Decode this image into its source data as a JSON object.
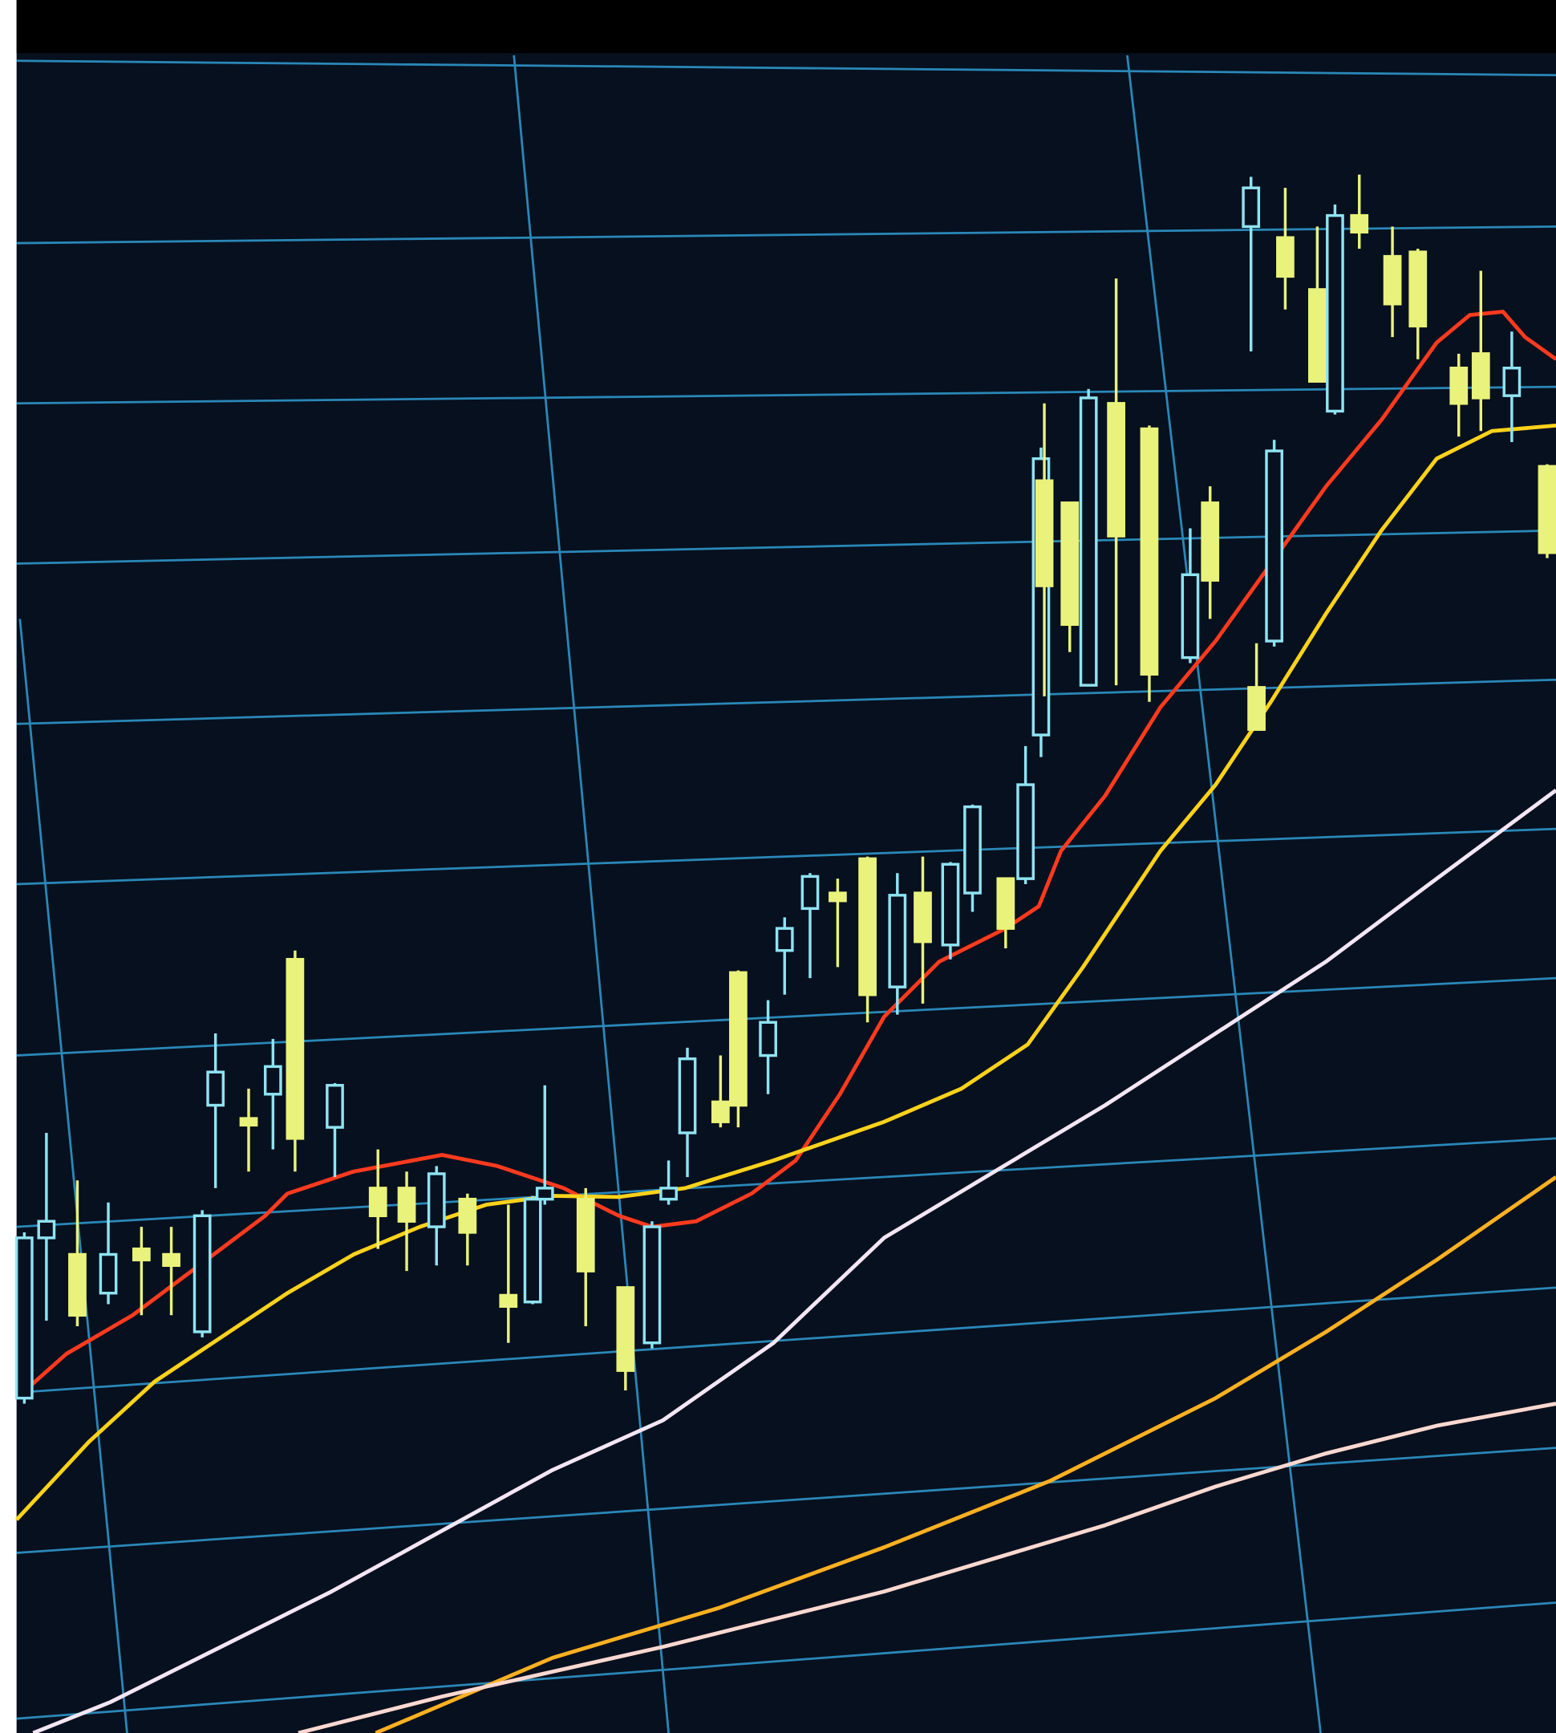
{
  "chart_data": {
    "type": "candlestick",
    "xlim": [
      0,
      1408
    ],
    "ylim": [
      0,
      1568
    ],
    "up_color": "#8fe3f2",
    "down_color": "#e9f27a",
    "x": [
      22,
      42,
      70,
      98,
      128,
      155,
      183,
      195,
      225,
      247,
      267,
      303,
      342,
      368,
      395,
      423,
      460,
      482,
      493,
      530,
      566,
      590,
      605,
      622,
      652,
      668,
      695,
      710,
      733,
      758,
      785,
      812,
      835,
      860,
      880,
      910,
      928,
      942,
      945,
      968,
      985,
      1010,
      1040,
      1077,
      1095,
      1132,
      1137,
      1153,
      1163,
      1192,
      1208,
      1230,
      1260,
      1283,
      1320,
      1340,
      1368,
      1400
    ],
    "open": [
      303,
      448,
      433,
      398,
      438,
      433,
      363,
      568,
      556,
      578,
      700,
      548,
      493,
      493,
      458,
      483,
      396,
      390,
      483,
      483,
      403,
      353,
      483,
      543,
      571,
      688,
      613,
      708,
      746,
      760,
      791,
      675,
      760,
      713,
      760,
      773,
      773,
      903,
      1133,
      1113,
      948,
      1203,
      1180,
      973,
      1113,
      1363,
      946,
      988,
      1353,
      1306,
      1196,
      1373,
      1336,
      1340,
      1235,
      1248,
      1210,
      1146
    ],
    "high": [
      453,
      543,
      500,
      480,
      458,
      458,
      473,
      633,
      583,
      628,
      708,
      588,
      528,
      508,
      513,
      488,
      478,
      486,
      586,
      493,
      403,
      463,
      518,
      620,
      613,
      690,
      663,
      738,
      778,
      773,
      793,
      778,
      793,
      788,
      840,
      773,
      893,
      1163,
      1203,
      1113,
      1216,
      1316,
      1183,
      1090,
      1128,
      1408,
      986,
      1170,
      1398,
      1363,
      1383,
      1410,
      1363,
      1343,
      1248,
      1323,
      1268,
      1148
    ],
    "low": [
      298,
      373,
      368,
      388,
      378,
      378,
      358,
      493,
      508,
      528,
      508,
      503,
      438,
      418,
      423,
      423,
      353,
      388,
      478,
      368,
      310,
      348,
      478,
      503,
      548,
      548,
      578,
      668,
      683,
      693,
      643,
      650,
      660,
      700,
      743,
      710,
      768,
      883,
      938,
      978,
      948,
      948,
      933,
      968,
      1008,
      1250,
      908,
      983,
      1288,
      1223,
      1193,
      1343,
      1263,
      1243,
      1173,
      1178,
      1168,
      1063
    ],
    "close": [
      448,
      463,
      378,
      433,
      428,
      423,
      468,
      598,
      550,
      603,
      538,
      586,
      468,
      463,
      506,
      453,
      386,
      483,
      493,
      418,
      328,
      458,
      493,
      610,
      553,
      568,
      643,
      728,
      775,
      753,
      668,
      758,
      716,
      786,
      838,
      728,
      858,
      1153,
      1038,
      1003,
      1208,
      1083,
      958,
      1048,
      1043,
      1398,
      908,
      1160,
      1318,
      1223,
      1373,
      1358,
      1293,
      1273,
      1203,
      1208,
      1235,
      1068
    ],
    "lines": [
      {
        "color": "#ff3a1e",
        "x": [
          15,
          60,
          120,
          180,
          240,
          260,
          320,
          400,
          450,
          510,
          560,
          590,
          630,
          680,
          720,
          760,
          800,
          850,
          910,
          940,
          960,
          1000,
          1050,
          1100,
          1150,
          1200,
          1250,
          1300,
          1330,
          1360,
          1380,
          1408
        ],
        "values": [
          303,
          343,
          378,
          423,
          468,
          488,
          508,
          523,
          513,
          493,
          468,
          458,
          463,
          488,
          518,
          578,
          648,
          698,
          728,
          748,
          798,
          848,
          928,
          988,
          1058,
          1128,
          1188,
          1258,
          1283,
          1286,
          1263,
          1243
        ]
      },
      {
        "color": "#ffd21a",
        "x": [
          15,
          80,
          140,
          200,
          260,
          320,
          380,
          440,
          500,
          560,
          620,
          700,
          800,
          870,
          930,
          980,
          1050,
          1100,
          1150,
          1200,
          1250,
          1300,
          1350,
          1408
        ],
        "values": [
          193,
          263,
          318,
          358,
          398,
          433,
          458,
          478,
          486,
          485,
          493,
          518,
          553,
          583,
          623,
          693,
          798,
          858,
          933,
          1013,
          1088,
          1153,
          1178,
          1183
        ]
      },
      {
        "color": "#f4e6f4",
        "x": [
          30,
          100,
          200,
          300,
          400,
          500,
          600,
          700,
          800,
          900,
          1000,
          1100,
          1200,
          1300,
          1408
        ],
        "values": [
          0,
          28,
          78,
          128,
          183,
          238,
          283,
          353,
          448,
          508,
          568,
          633,
          698,
          773,
          853
        ]
      },
      {
        "color": "#ffb020",
        "x": [
          340,
          500,
          650,
          800,
          950,
          1100,
          1200,
          1300,
          1408
        ],
        "values": [
          0,
          68,
          113,
          168,
          228,
          303,
          363,
          428,
          503
        ]
      },
      {
        "color": "#ffd8d0",
        "x": [
          270,
          400,
          600,
          800,
          1000,
          1100,
          1200,
          1300,
          1408
        ],
        "values": [
          0,
          33,
          78,
          128,
          188,
          223,
          253,
          278,
          298
        ]
      }
    ]
  }
}
